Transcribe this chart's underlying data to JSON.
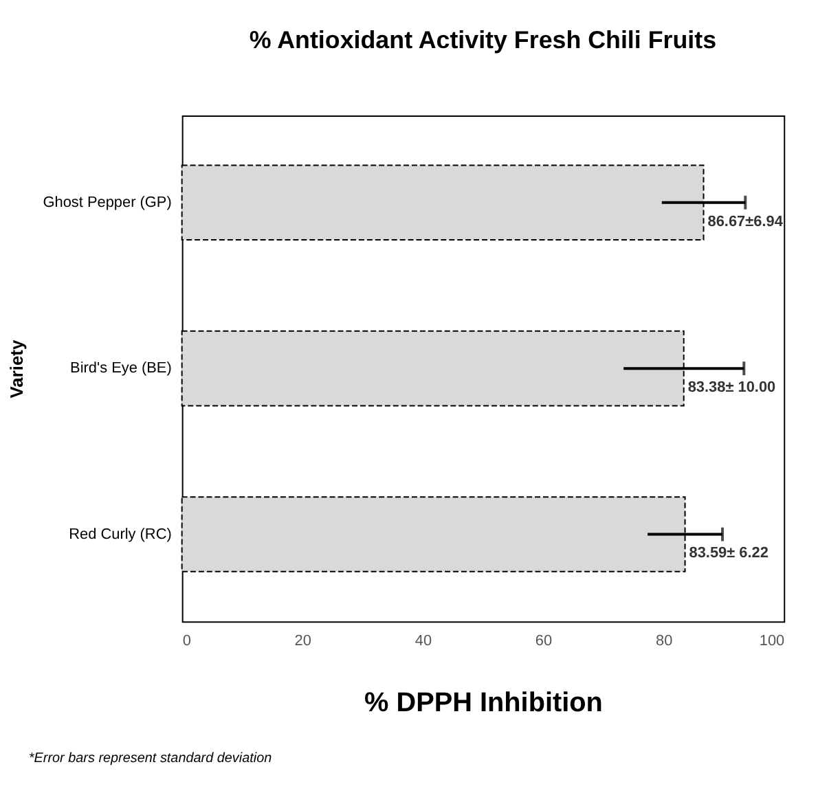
{
  "chart_data": {
    "type": "bar",
    "orientation": "horizontal",
    "title": "% Antioxidant Activity Fresh Chili Fruits",
    "xlabel": "% DPPH Inhibition",
    "ylabel": "Variety",
    "categories": [
      "Ghost Pepper (GP)",
      "Bird's Eye (BE)",
      "Red Curly (RC)"
    ],
    "values": [
      86.67,
      83.38,
      83.59
    ],
    "errors": [
      6.94,
      10.0,
      6.22
    ],
    "value_labels": [
      "86.67±6.94",
      "83.38± 10.00",
      "83.59± 6.22"
    ],
    "color": "#d9d9d9",
    "xlim": [
      0,
      100
    ],
    "xticks": [
      0,
      20,
      40,
      60,
      80,
      100
    ],
    "grid": false,
    "annotations": [
      "*Error bars represent standard deviation"
    ]
  }
}
